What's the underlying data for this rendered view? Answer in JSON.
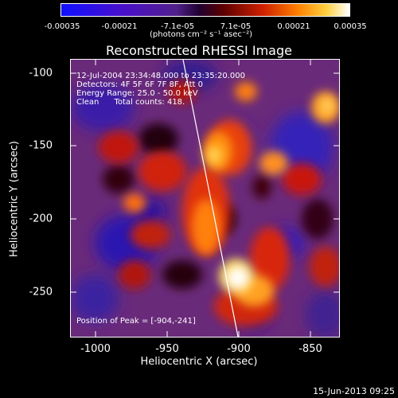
{
  "colorbar": {
    "ticks": [
      "-0.00035",
      "-0.00021",
      "-7.1e-05",
      "7.1e-05",
      "0.00021",
      "0.00035"
    ],
    "unit_label": "(photons cm⁻² s⁻¹ asec⁻²)"
  },
  "title": "Reconstructed RHESSI Image",
  "info": {
    "time": "12-Jul-2004 23:34:48.000 to 23:35:20.000",
    "detectors": "Detectors: 4F 5F 6F 7F 8F, Att 0",
    "energy": "Energy Range: 25.0 - 50.0 keV",
    "clean": "Clean      Total counts: 418.",
    "peak": "Position of Peak = [-904,-241]"
  },
  "axes": {
    "xlabel": "Heliocentric X (arcsec)",
    "ylabel": "Heliocentric Y (arcsec)",
    "xticks": [
      "-1000",
      "-950",
      "-900",
      "-850"
    ],
    "yticks": [
      "-100",
      "-150",
      "-200",
      "-250"
    ]
  },
  "footer": "15-Jun-2013 09:25",
  "colors": {
    "background": "#000000",
    "text": "#ffffff",
    "limb_line": "#ffffff"
  }
}
